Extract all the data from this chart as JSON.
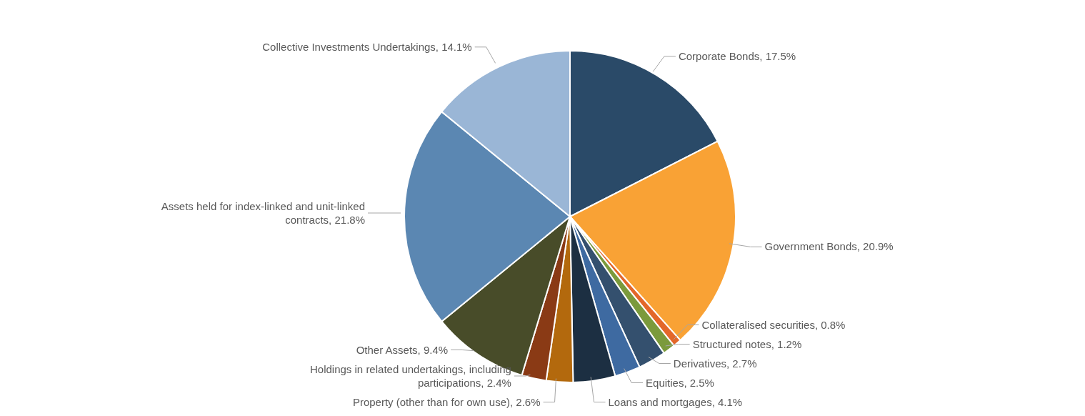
{
  "chart_data": {
    "type": "pie",
    "categories": [
      "Corporate Bonds",
      "Government Bonds",
      "Collateralised securities",
      "Structured notes",
      "Derivatives",
      "Equities",
      "Loans and mortgages",
      "Property (other than for own use)",
      "Holdings in related undertakings, including participations",
      "Other Assets",
      "Assets held for index-linked and unit-linked contracts",
      "Collective Investments Undertakings"
    ],
    "values": [
      17.5,
      20.9,
      0.8,
      1.2,
      2.7,
      2.5,
      4.1,
      2.6,
      2.4,
      9.4,
      21.8,
      14.1
    ],
    "value_labels": [
      "17.5%",
      "20.9%",
      "0.8%",
      "1.2%",
      "2.7%",
      "2.5%",
      "4.1%",
      "2.6%",
      "2.4%",
      "9.4%",
      "21.8%",
      "14.1%"
    ],
    "colors": [
      "#2a4a68",
      "#f9a235",
      "#e3672a",
      "#7b9a3c",
      "#34506e",
      "#3e6aa1",
      "#1c2f42",
      "#b3690d",
      "#8a3a15",
      "#484c29",
      "#5b87b2",
      "#9ab6d6"
    ],
    "legend": false
  }
}
